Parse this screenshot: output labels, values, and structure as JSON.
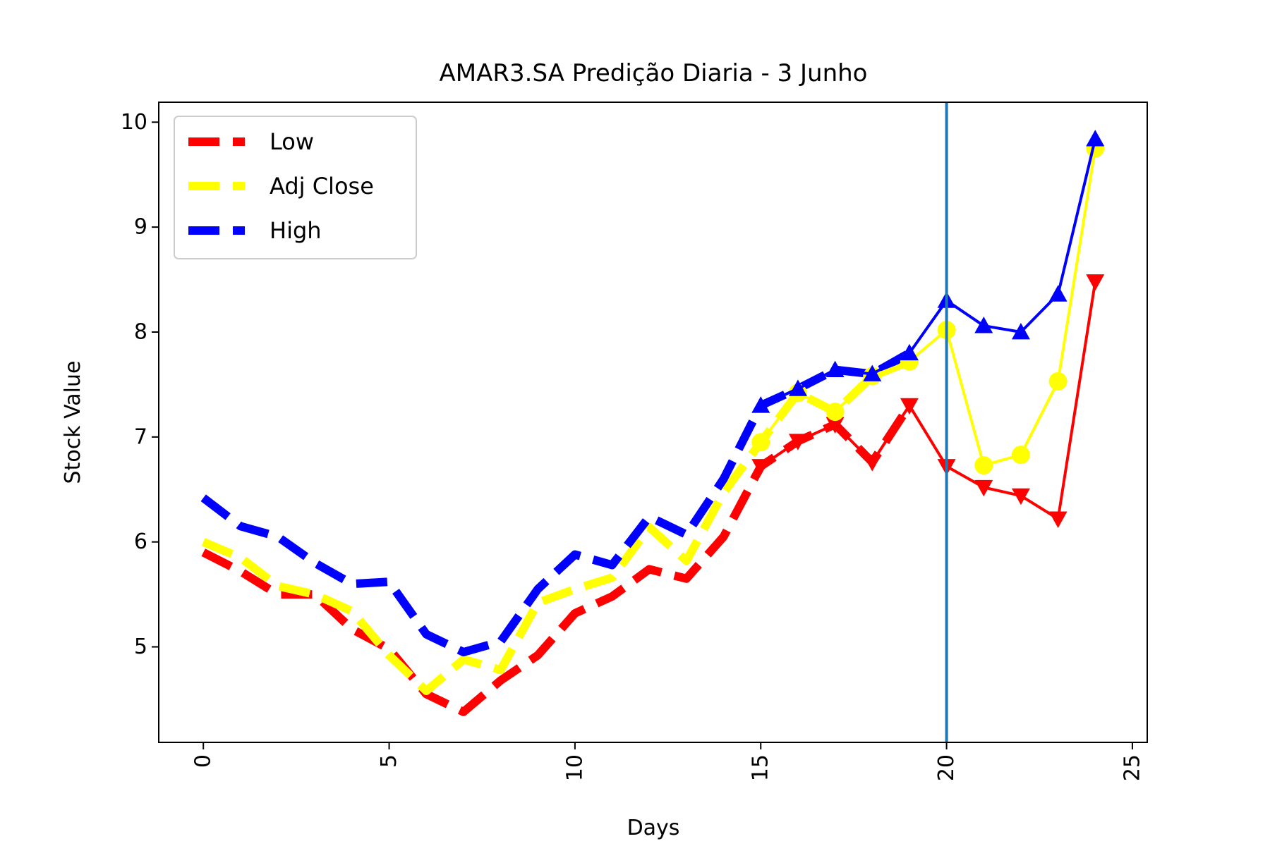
{
  "chart_data": {
    "type": "line",
    "title": "AMAR3.SA Predição Diaria - 3 Junho",
    "xlabel": "Days",
    "ylabel": "Stock Value",
    "xlim": [
      -1.2,
      25.4
    ],
    "ylim": [
      4.09,
      10.19
    ],
    "xticks": [
      "0",
      "5",
      "10",
      "15",
      "20",
      "25"
    ],
    "xtick_values": [
      0,
      5,
      10,
      15,
      20,
      25
    ],
    "yticks": [
      "5",
      "6",
      "7",
      "8",
      "9",
      "10"
    ],
    "ytick_values": [
      5,
      6,
      7,
      8,
      9,
      10
    ],
    "grid": false,
    "legend_position": "top-left",
    "vline": {
      "x": 20,
      "color": "#1f77b4"
    },
    "series": [
      {
        "name": "Low",
        "color": "#ff0000",
        "marker": "triangle-down",
        "historical": {
          "x": [
            0,
            1,
            2,
            3,
            4,
            5,
            6,
            7,
            8,
            9,
            10,
            11,
            12,
            13,
            14,
            15,
            16,
            17,
            18,
            19
          ],
          "y": [
            5.9,
            5.72,
            5.5,
            5.5,
            5.17,
            4.98,
            4.55,
            4.38,
            4.68,
            4.92,
            5.32,
            5.48,
            5.74,
            5.65,
            6.05,
            6.72,
            6.96,
            7.12,
            6.76,
            7.3
          ]
        },
        "prediction": {
          "x": [
            15,
            16,
            17,
            18,
            19,
            20,
            21,
            22,
            23,
            24
          ],
          "y": [
            6.72,
            6.96,
            7.12,
            6.76,
            7.3,
            6.72,
            6.52,
            6.44,
            6.22,
            8.48
          ]
        }
      },
      {
        "name": "Adj Close",
        "color": "#ffff00",
        "marker": "circle",
        "historical": {
          "x": [
            0,
            1,
            2,
            3,
            4,
            5,
            6,
            7,
            8,
            9,
            10,
            11,
            12,
            13,
            14,
            15,
            16,
            17,
            18,
            19
          ],
          "y": [
            6.0,
            5.85,
            5.58,
            5.5,
            5.34,
            4.92,
            4.58,
            4.88,
            4.78,
            5.42,
            5.55,
            5.66,
            6.14,
            5.82,
            6.47,
            6.95,
            7.42,
            7.24,
            7.58,
            7.72
          ]
        },
        "prediction": {
          "x": [
            15,
            16,
            17,
            18,
            19,
            20,
            21,
            22,
            23,
            24
          ],
          "y": [
            6.95,
            7.42,
            7.24,
            7.58,
            7.72,
            8.02,
            6.73,
            6.83,
            7.53,
            9.75
          ]
        }
      },
      {
        "name": "High",
        "color": "#0000ff",
        "marker": "triangle-up",
        "historical": {
          "x": [
            0,
            1,
            2,
            3,
            4,
            5,
            6,
            7,
            8,
            9,
            10,
            11,
            12,
            13,
            14,
            15,
            16,
            17,
            18,
            19
          ],
          "y": [
            6.42,
            6.15,
            6.05,
            5.8,
            5.6,
            5.62,
            5.12,
            4.95,
            5.05,
            5.55,
            5.88,
            5.78,
            6.24,
            6.07,
            6.6,
            7.3,
            7.46,
            7.64,
            7.6,
            7.8
          ]
        },
        "prediction": {
          "x": [
            15,
            16,
            17,
            18,
            19,
            20,
            21,
            22,
            23,
            24
          ],
          "y": [
            7.3,
            7.46,
            7.64,
            7.6,
            7.8,
            8.3,
            8.06,
            8.0,
            8.36,
            9.84
          ]
        }
      }
    ]
  }
}
